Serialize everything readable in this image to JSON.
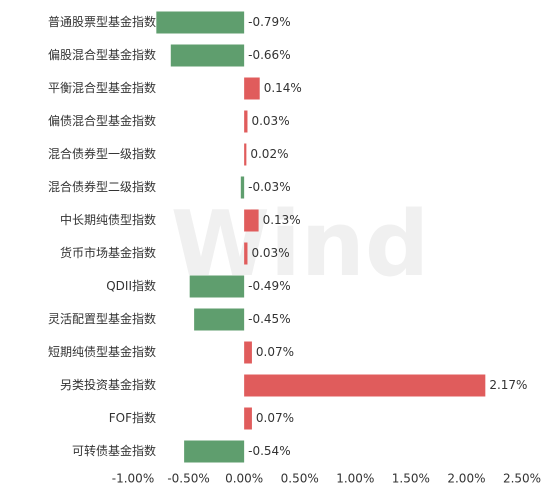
{
  "chart_data": {
    "type": "hbar",
    "watermark": "Wind",
    "categories": [
      "普通股票型基金指数",
      "偏股混合型基金指数",
      "平衡混合型基金指数",
      "偏债混合型基金指数",
      "混合债券型一级指数",
      "混合债券型二级指数",
      "中长期纯债型指数",
      "货币市场基金指数",
      "QDII指数",
      "灵活配置型基金指数",
      "短期纯债型基金指数",
      "另类投资基金指数",
      "FOF指数",
      "可转债基金指数"
    ],
    "values": [
      -0.79,
      -0.66,
      0.14,
      0.03,
      0.02,
      -0.03,
      0.13,
      0.03,
      -0.49,
      -0.45,
      0.07,
      2.17,
      0.07,
      -0.54
    ],
    "value_labels": [
      "-0.79%",
      "-0.66%",
      "0.14%",
      "0.03%",
      "0.02%",
      "-0.03%",
      "0.13%",
      "0.03%",
      "-0.49%",
      "-0.45%",
      "0.07%",
      "2.17%",
      "0.07%",
      "-0.54%"
    ],
    "positive_color": "#e05c5c",
    "negative_color": "#5f9e6e",
    "xlim": [
      -1,
      2.5
    ],
    "xticks": [
      {
        "value": -1,
        "label": "-1.00%"
      },
      {
        "value": -0.5,
        "label": "-0.50%"
      },
      {
        "value": 0,
        "label": "0.00%"
      },
      {
        "value": 0.5,
        "label": "0.50%"
      },
      {
        "value": 1,
        "label": "1.00%"
      },
      {
        "value": 1.5,
        "label": "1.50%"
      },
      {
        "value": 2,
        "label": "2.00%"
      },
      {
        "value": 2.5,
        "label": "2.50%"
      }
    ]
  }
}
